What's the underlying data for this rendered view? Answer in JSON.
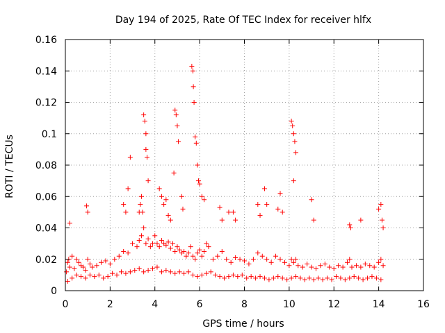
{
  "chart_data": {
    "type": "scatter",
    "title": "Day 194 of 2025, Rate Of TEC Index for receiver hlfx",
    "xlabel": "GPS time / hours",
    "ylabel": "ROTI / TECUs",
    "xlim": [
      0,
      16
    ],
    "ylim": [
      0,
      0.16
    ],
    "xticks": [
      0,
      2,
      4,
      6,
      8,
      10,
      12,
      14,
      16
    ],
    "yticks": [
      0,
      0.02,
      0.04,
      0.06,
      0.08,
      0.1,
      0.12,
      0.14,
      0.16
    ],
    "xtick_labels": [
      "0",
      "2",
      "4",
      "6",
      "8",
      "10",
      "12",
      "14",
      "16"
    ],
    "ytick_labels": [
      "0",
      "0.02",
      "0.04",
      "0.06",
      "0.08",
      "0.1",
      "0.12",
      "0.14",
      "0.16"
    ],
    "grid": true,
    "marker": "+",
    "marker_color": "#ff0000",
    "series": [
      {
        "name": "ROTI",
        "x": [
          0.05,
          0.1,
          0.15,
          0.2,
          0.3,
          0.4,
          0.5,
          0.6,
          0.7,
          0.8,
          0.9,
          1.0,
          1.1,
          1.2,
          1.4,
          1.6,
          1.8,
          2.0,
          2.2,
          2.4,
          2.6,
          2.8,
          3.0,
          3.2,
          3.3,
          3.4,
          3.5,
          3.6,
          3.7,
          3.8,
          3.9,
          4.0,
          4.1,
          4.2,
          4.3,
          4.4,
          4.5,
          4.6,
          4.7,
          4.8,
          4.9,
          5.0,
          5.1,
          5.2,
          5.3,
          5.4,
          5.5,
          5.6,
          5.7,
          5.8,
          5.9,
          6.0,
          6.1,
          6.2,
          6.3,
          6.4,
          6.6,
          6.8,
          7.0,
          7.2,
          7.4,
          7.6,
          7.8,
          8.0,
          8.2,
          8.4,
          8.6,
          8.8,
          9.0,
          9.2,
          9.4,
          9.6,
          9.8,
          10.0,
          10.1,
          10.2,
          10.3,
          10.4,
          10.6,
          10.8,
          11.0,
          11.2,
          11.4,
          11.6,
          11.8,
          12.0,
          12.2,
          12.4,
          12.6,
          12.7,
          12.8,
          13.0,
          13.2,
          13.4,
          13.6,
          13.8,
          14.0,
          14.1,
          14.2,
          0.1,
          0.3,
          0.5,
          0.7,
          0.9,
          1.1,
          1.3,
          1.5,
          1.7,
          1.9,
          2.1,
          2.3,
          2.5,
          2.7,
          2.9,
          3.1,
          3.3,
          3.5,
          3.7,
          3.9,
          4.1,
          4.3,
          4.5,
          4.7,
          4.9,
          5.1,
          5.3,
          5.5,
          5.7,
          5.9,
          6.1,
          6.3,
          6.5,
          6.7,
          6.9,
          7.1,
          7.3,
          7.5,
          7.7,
          7.9,
          8.1,
          8.3,
          8.5,
          8.7,
          8.9,
          9.1,
          9.3,
          9.5,
          9.7,
          9.9,
          10.1,
          10.3,
          10.5,
          10.7,
          10.9,
          11.1,
          11.3,
          11.5,
          11.7,
          11.9,
          12.1,
          12.3,
          12.5,
          12.7,
          12.9,
          13.1,
          13.3,
          13.5,
          13.7,
          13.9,
          14.1,
          3.5,
          3.55,
          3.6,
          3.6,
          3.65,
          3.7,
          2.8,
          2.9,
          4.9,
          4.95,
          5.0,
          5.05,
          4.85,
          5.65,
          5.7,
          5.72,
          5.75,
          5.8,
          5.85,
          5.9,
          5.95,
          6.0,
          6.1,
          6.2,
          10.1,
          10.15,
          10.2,
          10.25,
          10.3,
          10.2,
          0.95,
          1.0,
          0.2,
          8.9,
          9.0,
          9.6,
          9.7,
          11.0,
          11.1,
          12.7,
          12.75,
          13.2,
          14.0,
          14.1,
          14.15,
          14.2,
          4.2,
          4.3,
          4.4,
          3.3,
          3.35,
          3.4,
          3.45,
          5.2,
          5.25,
          2.6,
          2.7,
          6.9,
          7.0,
          7.3,
          7.5,
          7.6,
          8.6,
          8.7,
          9.5,
          4.5,
          4.6,
          4.7
        ],
        "y": [
          0.012,
          0.018,
          0.02,
          0.015,
          0.022,
          0.014,
          0.02,
          0.018,
          0.016,
          0.015,
          0.013,
          0.02,
          0.017,
          0.015,
          0.016,
          0.018,
          0.019,
          0.017,
          0.02,
          0.022,
          0.025,
          0.024,
          0.03,
          0.028,
          0.032,
          0.035,
          0.04,
          0.03,
          0.033,
          0.028,
          0.03,
          0.035,
          0.03,
          0.028,
          0.032,
          0.03,
          0.029,
          0.031,
          0.027,
          0.03,
          0.025,
          0.028,
          0.026,
          0.024,
          0.025,
          0.022,
          0.024,
          0.028,
          0.022,
          0.02,
          0.024,
          0.026,
          0.022,
          0.025,
          0.03,
          0.028,
          0.02,
          0.022,
          0.025,
          0.02,
          0.018,
          0.021,
          0.02,
          0.019,
          0.017,
          0.02,
          0.024,
          0.022,
          0.02,
          0.018,
          0.022,
          0.02,
          0.018,
          0.016,
          0.02,
          0.018,
          0.02,
          0.016,
          0.015,
          0.017,
          0.015,
          0.014,
          0.016,
          0.017,
          0.015,
          0.014,
          0.016,
          0.015,
          0.018,
          0.02,
          0.015,
          0.016,
          0.015,
          0.017,
          0.016,
          0.015,
          0.018,
          0.02,
          0.016,
          0.006,
          0.008,
          0.01,
          0.009,
          0.008,
          0.01,
          0.009,
          0.01,
          0.008,
          0.009,
          0.011,
          0.01,
          0.012,
          0.011,
          0.012,
          0.013,
          0.014,
          0.012,
          0.013,
          0.014,
          0.015,
          0.012,
          0.013,
          0.012,
          0.011,
          0.012,
          0.011,
          0.012,
          0.01,
          0.009,
          0.01,
          0.011,
          0.012,
          0.01,
          0.009,
          0.008,
          0.009,
          0.01,
          0.009,
          0.01,
          0.008,
          0.009,
          0.008,
          0.009,
          0.008,
          0.007,
          0.008,
          0.009,
          0.008,
          0.007,
          0.008,
          0.009,
          0.008,
          0.007,
          0.008,
          0.007,
          0.008,
          0.007,
          0.008,
          0.007,
          0.009,
          0.008,
          0.007,
          0.008,
          0.009,
          0.008,
          0.007,
          0.008,
          0.009,
          0.008,
          0.007,
          0.112,
          0.108,
          0.1,
          0.09,
          0.085,
          0.07,
          0.065,
          0.085,
          0.115,
          0.112,
          0.105,
          0.095,
          0.075,
          0.143,
          0.14,
          0.13,
          0.12,
          0.098,
          0.094,
          0.08,
          0.07,
          0.068,
          0.06,
          0.058,
          0.108,
          0.105,
          0.1,
          0.095,
          0.088,
          0.07,
          0.054,
          0.05,
          0.043,
          0.065,
          0.055,
          0.062,
          0.05,
          0.058,
          0.045,
          0.042,
          0.04,
          0.045,
          0.052,
          0.055,
          0.045,
          0.04,
          0.065,
          0.06,
          0.055,
          0.05,
          0.055,
          0.06,
          0.05,
          0.06,
          0.052,
          0.055,
          0.05,
          0.053,
          0.045,
          0.05,
          0.05,
          0.045,
          0.055,
          0.048,
          0.052,
          0.058,
          0.048,
          0.045
        ]
      }
    ]
  }
}
